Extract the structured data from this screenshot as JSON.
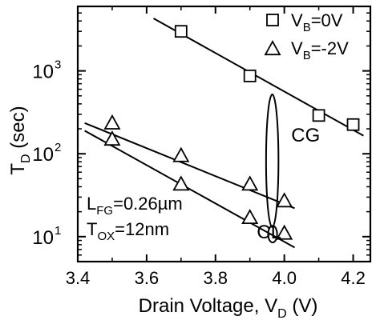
{
  "chart_data": {
    "type": "scatter",
    "xlabel": "Drain Voltage, V",
    "xlabel_sub": "D",
    "xlabel_unit": "(V)",
    "ylabel": "T",
    "ylabel_sub": "D",
    "ylabel_unit": "(sec)",
    "xlim": [
      3.4,
      4.25
    ],
    "ylim": [
      5,
      6000
    ],
    "yscale": "log",
    "grid": false,
    "legend_position": "top-right",
    "xticks": [
      3.4,
      3.6,
      3.8,
      4.0,
      4.2
    ],
    "xtick_labels": [
      "3.4",
      "3.6",
      "3.8",
      "4.0",
      "4.2"
    ],
    "yticks": [
      10,
      100,
      1000
    ],
    "ytick_base": "10",
    "ytick_exps": [
      "1",
      "2",
      "3"
    ],
    "series": [
      {
        "name_main": "V",
        "name_sub": "B",
        "name_rest": "=0V",
        "marker": "square",
        "points": [
          {
            "x": 3.7,
            "y": 3000
          },
          {
            "x": 3.9,
            "y": 870
          },
          {
            "x": 4.1,
            "y": 290
          },
          {
            "x": 4.2,
            "y": 225
          }
        ],
        "fits": [
          {
            "x0": 3.62,
            "y0": 4300,
            "x1": 4.23,
            "y1": 165
          }
        ]
      },
      {
        "name_main": "V",
        "name_sub": "B",
        "name_rest": "=-2V",
        "marker": "triangle",
        "points": [
          {
            "x": 3.5,
            "y": 235
          },
          {
            "x": 3.5,
            "y": 150
          },
          {
            "x": 3.7,
            "y": 95
          },
          {
            "x": 3.7,
            "y": 43
          },
          {
            "x": 3.9,
            "y": 43
          },
          {
            "x": 3.9,
            "y": 17
          },
          {
            "x": 4.0,
            "y": 27
          },
          {
            "x": 4.0,
            "y": 11
          }
        ],
        "fits": [
          {
            "x0": 3.42,
            "y0": 235,
            "x1": 4.03,
            "y1": 22
          },
          {
            "x0": 3.42,
            "y0": 190,
            "x1": 4.03,
            "y1": 7.4
          }
        ]
      }
    ],
    "annotations": [
      {
        "text": "CG",
        "x": 4.02,
        "y": 140
      },
      {
        "text": "CL",
        "x": 3.92,
        "y": 9.5
      }
    ],
    "ellipses": [
      {
        "cx": 3.965,
        "ymin": 13,
        "ymax": 520,
        "half_width_v": 0.018
      },
      {
        "cx": 3.966,
        "ymin": 8.5,
        "ymax": 13.5,
        "half_width_v": 0.013
      }
    ],
    "params": [
      {
        "main": "L",
        "sub": "FG",
        "rest": "=0.26µm"
      },
      {
        "main": "T",
        "sub": "OX",
        "rest": "=12nm"
      }
    ]
  }
}
